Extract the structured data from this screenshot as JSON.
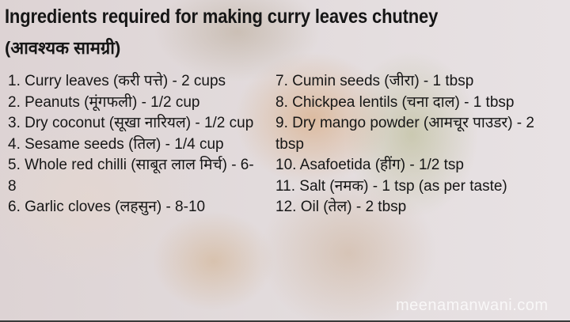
{
  "title": "Ingredients required for making curry leaves chutney",
  "subtitle": "(आवश्यक सामग्री)",
  "watermark": "meenamanwani.com",
  "ingredients_left": [
    "1. Curry leaves (करी पत्ते) - 2 cups",
    "2. Peanuts (मूंगफली) - 1/2 cup",
    "3. Dry coconut (सूखा नारियल) - 1/2 cup",
    "4. Sesame seeds (तिल) - 1/4 cup",
    "5. Whole red chilli (साबूत लाल मिर्च) - 6-8",
    "6. Garlic cloves (लहसुन) - 8-10"
  ],
  "ingredients_right": [
    "7. Cumin seeds (जीरा) - 1 tbsp",
    "8. Chickpea lentils (चना दाल) - 1 tbsp",
    "9. Dry mango powder (आमचूर पाउडर) - 2 tbsp",
    "10. Asafoetida (हींग) - 1/2 tsp",
    "11. Salt (नमक) - 1 tsp (as per taste)",
    "12. Oil (तेल) - 2 tbsp"
  ]
}
